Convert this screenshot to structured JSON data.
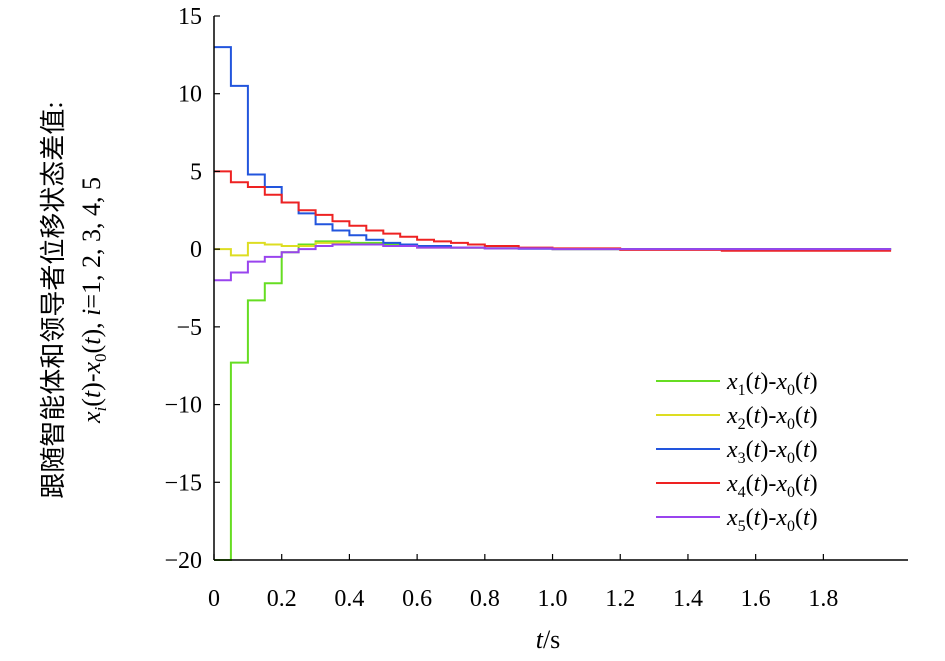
{
  "chart_data": {
    "type": "line",
    "title": "",
    "xlabel": {
      "italic": "t",
      "rest": "/s"
    },
    "ylabel": {
      "line1": "跟随智能体和领导者位移状态差值:",
      "line2": "xi(t)-x0(t), i=1, 2, 3, 4, 5"
    },
    "xlim": [
      0,
      2.05
    ],
    "ylim": [
      -20,
      15
    ],
    "xticks": [
      0,
      0.2,
      0.4,
      0.6,
      0.8,
      1.0,
      1.2,
      1.4,
      1.6,
      1.8
    ],
    "xtick_labels": [
      "0",
      "0.2",
      "0.4",
      "0.6",
      "0.8",
      "1.0",
      "1.2",
      "1.4",
      "1.6",
      "1.8"
    ],
    "yticks": [
      15,
      10,
      5,
      0,
      -5,
      -10,
      -15,
      -20
    ],
    "ytick_labels": [
      "15",
      "10",
      "5",
      "0",
      "−5",
      "−10",
      "−15",
      "−20"
    ],
    "grid": false,
    "legend_position": "lower-right",
    "series": [
      {
        "name": "x1(t)-x0(t)",
        "index": "1",
        "color": "#66dd22",
        "x": [
          0,
          0.05,
          0.1,
          0.15,
          0.2,
          0.25,
          0.3,
          0.35,
          0.4,
          0.5,
          0.6,
          0.7,
          0.8,
          1.0,
          2.0
        ],
        "y": [
          -20,
          -7.3,
          -3.3,
          -2.2,
          -0.2,
          0.3,
          0.5,
          0.5,
          0.4,
          0.3,
          0.2,
          0.1,
          0.05,
          0.0,
          0.0
        ]
      },
      {
        "name": "x2(t)-x0(t)",
        "index": "2",
        "color": "#dddd22",
        "x": [
          0,
          0.05,
          0.1,
          0.15,
          0.2,
          0.3,
          0.4,
          0.5,
          0.6,
          0.8,
          1.0,
          2.0
        ],
        "y": [
          0.0,
          -0.4,
          0.4,
          0.3,
          0.2,
          0.4,
          0.3,
          0.2,
          0.1,
          0.05,
          0.0,
          0.0
        ]
      },
      {
        "name": "x3(t)-x0(t)",
        "index": "3",
        "color": "#2255dd",
        "x": [
          0,
          0.05,
          0.1,
          0.15,
          0.2,
          0.25,
          0.3,
          0.35,
          0.4,
          0.45,
          0.5,
          0.55,
          0.6,
          0.7,
          0.8,
          0.9,
          1.0,
          2.0
        ],
        "y": [
          13,
          10.5,
          4.8,
          4.0,
          3.0,
          2.3,
          1.6,
          1.2,
          0.9,
          0.6,
          0.4,
          0.3,
          0.2,
          0.1,
          0.05,
          0.02,
          0.0,
          0.0
        ]
      },
      {
        "name": "x4(t)-x0(t)",
        "index": "4",
        "color": "#ee2222",
        "x": [
          0,
          0.05,
          0.1,
          0.15,
          0.2,
          0.25,
          0.3,
          0.35,
          0.4,
          0.45,
          0.5,
          0.55,
          0.6,
          0.65,
          0.7,
          0.75,
          0.8,
          0.9,
          1.0,
          1.2,
          1.5,
          1.8,
          2.0
        ],
        "y": [
          5.0,
          4.3,
          4.0,
          3.5,
          3.0,
          2.5,
          2.2,
          1.8,
          1.5,
          1.2,
          1.0,
          0.8,
          0.6,
          0.5,
          0.4,
          0.3,
          0.2,
          0.1,
          0.05,
          -0.05,
          -0.1,
          -0.1,
          -0.1
        ]
      },
      {
        "name": "x5(t)-x0(t)",
        "index": "5",
        "color": "#9944ee",
        "x": [
          0,
          0.05,
          0.1,
          0.15,
          0.2,
          0.25,
          0.3,
          0.35,
          0.4,
          0.5,
          0.6,
          0.8,
          1.0,
          2.0
        ],
        "y": [
          -2.0,
          -1.5,
          -0.8,
          -0.5,
          -0.2,
          0.0,
          0.2,
          0.3,
          0.3,
          0.2,
          0.1,
          0.05,
          0.0,
          0.0
        ]
      }
    ]
  }
}
